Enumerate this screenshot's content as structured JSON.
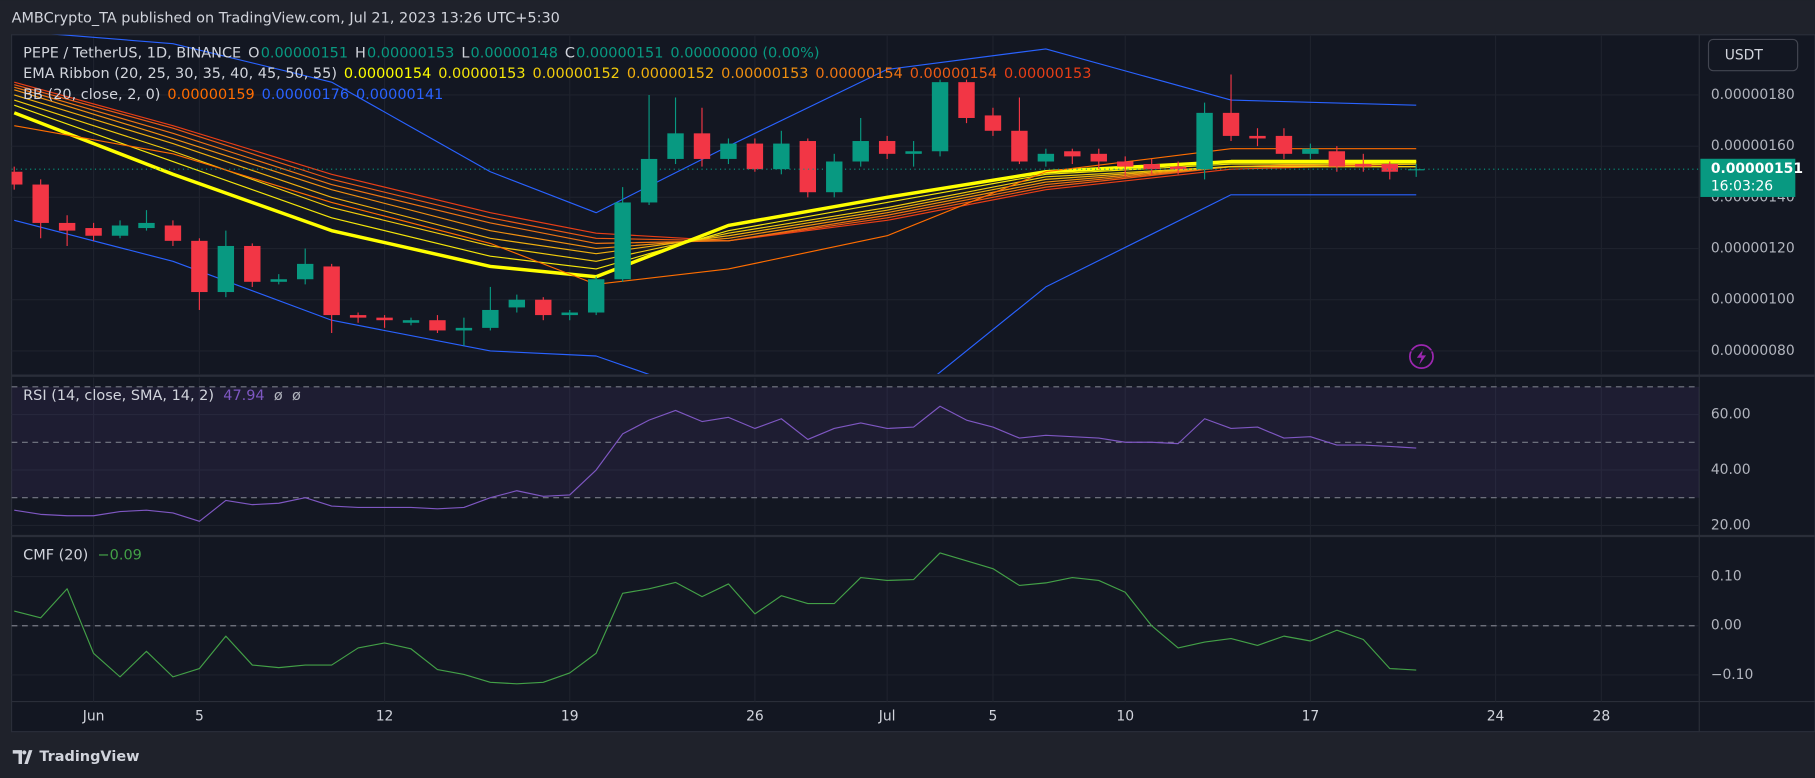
{
  "header": {
    "publisher": "AMBCrypto_TA published on TradingView.com, Jul 21, 2023 13:26 UTC+5:30"
  },
  "footer": {
    "brand": "TradingView"
  },
  "currency": "USDT",
  "chart_data": [
    {
      "type": "candlestick",
      "legend": {
        "symbol": "PEPE / TetherUS, 1D, BINANCE",
        "ohlc": [
          {
            "label": "O",
            "value": "0.00000151"
          },
          {
            "label": "H",
            "value": "0.00000153"
          },
          {
            "label": "L",
            "value": "0.00000148"
          },
          {
            "label": "C",
            "value": "0.00000151"
          }
        ],
        "change": "0.00000000 (0.00%)"
      },
      "x": [
        -3,
        -2,
        -1,
        0,
        1,
        2,
        3,
        4,
        5,
        6,
        7,
        8,
        9,
        10,
        11,
        12,
        13,
        14,
        15,
        16,
        17,
        18,
        19,
        20,
        21,
        22,
        23,
        24,
        25,
        26,
        27,
        28,
        29,
        30,
        31,
        32,
        33,
        34,
        35,
        36,
        37,
        38,
        39,
        40,
        41,
        42,
        43,
        44,
        45,
        46,
        47,
        48,
        49,
        50
      ],
      "open": [
        1.5e-07,
        1.45e-07,
        1.3e-07,
        1.28e-07,
        1.25e-07,
        1.28e-07,
        1.29e-07,
        1.23e-07,
        1.03e-07,
        1.21e-07,
        1.07e-07,
        1.08e-07,
        1.13e-07,
        9.4e-08,
        9.3e-08,
        9.1e-08,
        9.2e-08,
        8.8e-08,
        8.9e-08,
        9.7e-08,
        1e-07,
        9.4e-08,
        9.5e-08,
        1.08e-07,
        1.38e-07,
        1.55e-07,
        1.65e-07,
        1.55e-07,
        1.61e-07,
        1.51e-07,
        1.62e-07,
        1.42e-07,
        1.54e-07,
        1.62e-07,
        1.57e-07,
        1.58e-07,
        1.85e-07,
        1.72e-07,
        1.66e-07,
        1.54e-07,
        1.58e-07,
        1.57e-07,
        1.54e-07,
        1.53e-07,
        1.52e-07,
        1.51e-07,
        1.73e-07,
        1.64e-07,
        1.64e-07,
        1.57e-07,
        1.58e-07,
        1.53e-07,
        1.53e-07,
        1.51e-07
      ],
      "high": [
        1.52e-07,
        1.47e-07,
        1.33e-07,
        1.3e-07,
        1.31e-07,
        1.35e-07,
        1.31e-07,
        1.24e-07,
        1.27e-07,
        1.22e-07,
        1.1e-07,
        1.2e-07,
        1.14e-07,
        9.5e-08,
        9.4e-08,
        9.3e-08,
        9.4e-08,
        9.3e-08,
        1.05e-07,
        1.02e-07,
        1.01e-07,
        9.6e-08,
        1.09e-07,
        1.44e-07,
        1.8e-07,
        1.79e-07,
        1.75e-07,
        1.63e-07,
        1.63e-07,
        1.66e-07,
        1.63e-07,
        1.57e-07,
        1.71e-07,
        1.64e-07,
        1.62e-07,
        1.86e-07,
        1.86e-07,
        1.75e-07,
        1.79e-07,
        1.59e-07,
        1.59e-07,
        1.59e-07,
        1.56e-07,
        1.55e-07,
        1.54e-07,
        1.77e-07,
        1.88e-07,
        1.67e-07,
        1.67e-07,
        1.61e-07,
        1.6e-07,
        1.57e-07,
        1.54e-07,
        1.53e-07
      ],
      "low": [
        1.43e-07,
        1.24e-07,
        1.21e-07,
        1.23e-07,
        1.24e-07,
        1.27e-07,
        1.21e-07,
        9.6e-08,
        1.01e-07,
        1.05e-07,
        1.06e-07,
        1.06e-07,
        8.7e-08,
        9.1e-08,
        8.9e-08,
        9e-08,
        8.7e-08,
        8.2e-08,
        8.8e-08,
        9.5e-08,
        9.2e-08,
        9.2e-08,
        9.4e-08,
        1.07e-07,
        1.37e-07,
        1.53e-07,
        1.52e-07,
        1.53e-07,
        1.5e-07,
        1.49e-07,
        1.4e-07,
        1.4e-07,
        1.52e-07,
        1.55e-07,
        1.52e-07,
        1.56e-07,
        1.69e-07,
        1.64e-07,
        1.53e-07,
        1.52e-07,
        1.53e-07,
        1.51e-07,
        1.48e-07,
        1.49e-07,
        1.49e-07,
        1.47e-07,
        1.62e-07,
        1.6e-07,
        1.55e-07,
        1.55e-07,
        1.5e-07,
        1.5e-07,
        1.47e-07,
        1.48e-07
      ],
      "close": [
        1.45e-07,
        1.3e-07,
        1.27e-07,
        1.25e-07,
        1.29e-07,
        1.3e-07,
        1.23e-07,
        1.03e-07,
        1.21e-07,
        1.07e-07,
        1.08e-07,
        1.14e-07,
        9.4e-08,
        9.3e-08,
        9.2e-08,
        9.2e-08,
        8.8e-08,
        8.9e-08,
        9.6e-08,
        1e-07,
        9.4e-08,
        9.5e-08,
        1.08e-07,
        1.38e-07,
        1.55e-07,
        1.65e-07,
        1.55e-07,
        1.61e-07,
        1.51e-07,
        1.61e-07,
        1.42e-07,
        1.54e-07,
        1.62e-07,
        1.57e-07,
        1.58e-07,
        1.85e-07,
        1.71e-07,
        1.66e-07,
        1.54e-07,
        1.57e-07,
        1.56e-07,
        1.54e-07,
        1.52e-07,
        1.51e-07,
        1.51e-07,
        1.73e-07,
        1.64e-07,
        1.63e-07,
        1.57e-07,
        1.59e-07,
        1.52e-07,
        1.52e-07,
        1.5e-07,
        1.51e-07
      ],
      "up_color": "#089981",
      "down_color": "#f23645",
      "xlim": [
        -3.1,
        60.7
      ],
      "ylim": [
        7.1e-08,
        2.035e-07
      ],
      "yticks": [
        {
          "value": 8e-08,
          "label": "0.00000080"
        },
        {
          "value": 1e-07,
          "label": "0.00000100"
        },
        {
          "value": 1.2e-07,
          "label": "0.00000120"
        },
        {
          "value": 1.4e-07,
          "label": "0.00000140"
        },
        {
          "value": 1.6e-07,
          "label": "0.00000160"
        },
        {
          "value": 1.8e-07,
          "label": "0.00000180"
        }
      ],
      "grid": true,
      "last_price": {
        "value": 1.51e-07,
        "label": "0.00000151"
      },
      "countdown": "16:03:26",
      "overlays": [
        {
          "name": "EMA Ribbon (20, 25, 30, 35, 40, 45, 50, 55)",
          "x": [
            -3,
            3,
            9,
            15,
            19,
            24,
            30,
            36,
            43,
            50
          ],
          "series": [
            {
              "color": "#ffff00",
              "line_width": 3,
              "legend_value": "0.00000154",
              "values": [
                1.73e-07,
                1.49e-07,
                1.27e-07,
                1.13e-07,
                1.09e-07,
                1.29e-07,
                1.4e-07,
                1.5e-07,
                1.54e-07,
                1.54e-07
              ]
            },
            {
              "color": "#f5e60a",
              "line_width": 1,
              "legend_value": "0.00000153",
              "values": [
                1.76e-07,
                1.54e-07,
                1.32e-07,
                1.17e-07,
                1.12e-07,
                1.27e-07,
                1.38e-07,
                1.49e-07,
                1.53e-07,
                1.53e-07
              ]
            },
            {
              "color": "#f2cc0c",
              "line_width": 1,
              "legend_value": "0.00000152",
              "values": [
                1.78e-07,
                1.58e-07,
                1.36e-07,
                1.21e-07,
                1.15e-07,
                1.26e-07,
                1.36e-07,
                1.48e-07,
                1.52e-07,
                1.52e-07
              ]
            },
            {
              "color": "#f0b00e",
              "line_width": 1,
              "legend_value": "0.00000152",
              "values": [
                1.8e-07,
                1.61e-07,
                1.4e-07,
                1.24e-07,
                1.18e-07,
                1.25e-07,
                1.35e-07,
                1.47e-07,
                1.52e-07,
                1.52e-07
              ]
            },
            {
              "color": "#f09010",
              "line_width": 1,
              "legend_value": "0.00000153",
              "values": [
                1.82e-07,
                1.63e-07,
                1.43e-07,
                1.27e-07,
                1.2e-07,
                1.24e-07,
                1.34e-07,
                1.46e-07,
                1.52e-07,
                1.53e-07
              ]
            },
            {
              "color": "#ee7412",
              "line_width": 1,
              "legend_value": "0.00000154",
              "values": [
                1.83e-07,
                1.65e-07,
                1.45e-07,
                1.3e-07,
                1.22e-07,
                1.23e-07,
                1.33e-07,
                1.45e-07,
                1.52e-07,
                1.54e-07
              ]
            },
            {
              "color": "#ec5a14",
              "line_width": 1,
              "legend_value": "0.00000154",
              "values": [
                1.84e-07,
                1.67e-07,
                1.47e-07,
                1.32e-07,
                1.24e-07,
                1.23e-07,
                1.32e-07,
                1.44e-07,
                1.52e-07,
                1.54e-07
              ]
            },
            {
              "color": "#e93e16",
              "line_width": 1,
              "legend_value": "0.00000153",
              "values": [
                1.85e-07,
                1.68e-07,
                1.49e-07,
                1.34e-07,
                1.26e-07,
                1.23e-07,
                1.31e-07,
                1.43e-07,
                1.51e-07,
                1.53e-07
              ]
            }
          ]
        },
        {
          "name": "BB (20, close, 2, 0)",
          "x": [
            -3,
            3,
            9,
            15,
            19,
            24,
            30,
            36,
            43,
            50
          ],
          "series": [
            {
              "color": "#ff6d00",
              "line_width": 1,
              "legend_value": "0.00000159",
              "values": [
                1.68e-07,
                1.57e-07,
                1.38e-07,
                1.22e-07,
                1.06e-07,
                1.12e-07,
                1.25e-07,
                1.5e-07,
                1.59e-07,
                1.59e-07
              ]
            },
            {
              "color": "#2962ff",
              "line_width": 1,
              "legend_value": "0.00000176",
              "values": [
                2.05e-07,
                2e-07,
                1.85e-07,
                1.5e-07,
                1.34e-07,
                1.6e-07,
                1.9e-07,
                1.98e-07,
                1.78e-07,
                1.76e-07
              ]
            },
            {
              "color": "#2962ff",
              "line_width": 1,
              "legend_value": "0.00000141",
              "values": [
                1.31e-07,
                1.15e-07,
                9.2e-08,
                8e-08,
                7.8e-08,
                6e-08,
                5.5e-08,
                1.05e-07,
                1.41e-07,
                1.41e-07
              ]
            }
          ]
        }
      ]
    },
    {
      "type": "line",
      "legend": {
        "name": "RSI (14, close, SMA, 14, 2)",
        "values": [
          "47.94",
          "ø",
          "ø"
        ]
      },
      "x": [
        -3,
        -2,
        -1,
        0,
        1,
        2,
        3,
        4,
        5,
        6,
        7,
        8,
        9,
        10,
        11,
        12,
        13,
        14,
        15,
        16,
        17,
        18,
        19,
        20,
        21,
        22,
        23,
        24,
        25,
        26,
        27,
        28,
        29,
        30,
        31,
        32,
        33,
        34,
        35,
        36,
        37,
        38,
        39,
        40,
        41,
        42,
        43,
        44,
        45,
        46,
        47,
        48,
        49,
        50
      ],
      "series": [
        {
          "color": "#7e57c2",
          "values": [
            25.5,
            24,
            23.5,
            23.5,
            25,
            25.5,
            24.5,
            21.5,
            29,
            27.5,
            28,
            30,
            27,
            26.5,
            26.5,
            26.5,
            26,
            26.5,
            30,
            32.5,
            30.5,
            31,
            40,
            53,
            58,
            61.5,
            57.5,
            59,
            55,
            58.5,
            51,
            55,
            57,
            55,
            55.5,
            63,
            58,
            55.5,
            51.5,
            52.5,
            52,
            51.5,
            50,
            50,
            49.5,
            58.5,
            55,
            55.5,
            51.5,
            52,
            49,
            49,
            48.5,
            47.94
          ]
        }
      ],
      "xlim": [
        -3.1,
        60.7
      ],
      "ylim": [
        16.6,
        73.4
      ],
      "yticks": [
        {
          "value": 20,
          "label": "20.00"
        },
        {
          "value": 40,
          "label": "40.00"
        },
        {
          "value": 60,
          "label": "60.00"
        }
      ],
      "grid": true,
      "bands": [
        70,
        50,
        30
      ],
      "band_fill": "#7e57c2"
    },
    {
      "type": "line",
      "legend": {
        "name": "CMF (20)",
        "values": [
          "−0.09"
        ]
      },
      "x": [
        -3,
        -2,
        -1,
        0,
        1,
        2,
        3,
        4,
        5,
        6,
        7,
        8,
        9,
        10,
        11,
        12,
        13,
        14,
        15,
        16,
        17,
        18,
        19,
        20,
        21,
        22,
        23,
        24,
        25,
        26,
        27,
        28,
        29,
        30,
        31,
        32,
        33,
        34,
        35,
        36,
        37,
        38,
        39,
        40,
        41,
        42,
        43,
        44,
        45,
        46,
        47,
        48,
        49,
        50
      ],
      "series": [
        {
          "color": "#43a047",
          "values": [
            0.03,
            0.016,
            0.075,
            -0.056,
            -0.104,
            -0.052,
            -0.104,
            -0.087,
            -0.021,
            -0.08,
            -0.085,
            -0.08,
            -0.08,
            -0.045,
            -0.035,
            -0.047,
            -0.089,
            -0.099,
            -0.115,
            -0.118,
            -0.115,
            -0.096,
            -0.056,
            0.066,
            0.075,
            0.088,
            0.059,
            0.085,
            0.024,
            0.061,
            0.045,
            0.045,
            0.098,
            0.092,
            0.094,
            0.148,
            0.132,
            0.116,
            0.082,
            0.087,
            0.098,
            0.092,
            0.068,
            0,
            -0.045,
            -0.033,
            -0.026,
            -0.04,
            -0.021,
            -0.031,
            -0.009,
            -0.028,
            -0.087,
            -0.09
          ]
        }
      ],
      "xlim": [
        -3.1,
        60.7
      ],
      "ylim": [
        -0.154,
        0.18
      ],
      "yticks": [
        {
          "value": -0.1,
          "label": "−0.10"
        },
        {
          "value": 0,
          "label": "0.00"
        },
        {
          "value": 0.1,
          "label": "0.10"
        }
      ],
      "grid": true,
      "zero_line": 0,
      "xticks": [
        {
          "value": 0,
          "label": "Jun"
        },
        {
          "value": 4,
          "label": "5"
        },
        {
          "value": 11,
          "label": "12"
        },
        {
          "value": 18,
          "label": "19"
        },
        {
          "value": 25,
          "label": "26"
        },
        {
          "value": 30,
          "label": "Jul"
        },
        {
          "value": 34,
          "label": "5"
        },
        {
          "value": 39,
          "label": "10"
        },
        {
          "value": 46,
          "label": "17"
        },
        {
          "value": 53,
          "label": "24"
        },
        {
          "value": 57,
          "label": "28"
        }
      ]
    }
  ]
}
